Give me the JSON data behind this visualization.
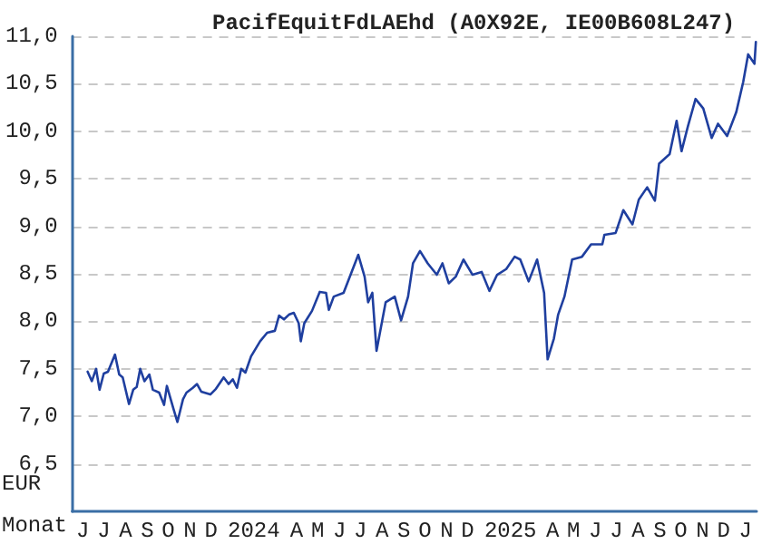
{
  "chart_data": {
    "type": "line",
    "title": "PacifEquitFdLAEhd (A0X92E, IE00B608L247)",
    "xlabel": "Monat",
    "ylabel": "EUR",
    "x": [
      "2023-06-23",
      "2023-06-29",
      "2023-07-05",
      "2023-07-10",
      "2023-07-16",
      "2023-07-22",
      "2023-08-01",
      "2023-08-07",
      "2023-08-12",
      "2023-08-21",
      "2023-08-27",
      "2023-09-01",
      "2023-09-06",
      "2023-09-12",
      "2023-09-19",
      "2023-09-24",
      "2023-10-03",
      "2023-10-10",
      "2023-10-14",
      "2023-10-23",
      "2023-10-29",
      "2023-11-06",
      "2023-11-11",
      "2023-11-20",
      "2023-11-26",
      "2023-12-02",
      "2023-12-15",
      "2023-12-23",
      "2024-01-03",
      "2024-01-10",
      "2024-01-16",
      "2024-01-22",
      "2024-01-28",
      "2024-02-03",
      "2024-02-11",
      "2024-02-24",
      "2024-03-05",
      "2024-03-16",
      "2024-03-22",
      "2024-03-29",
      "2024-04-05",
      "2024-04-12",
      "2024-04-19",
      "2024-04-22",
      "2024-04-27",
      "2024-05-08",
      "2024-05-19",
      "2024-05-28",
      "2024-06-01",
      "2024-06-08",
      "2024-06-22",
      "2024-07-03",
      "2024-07-13",
      "2024-07-22",
      "2024-07-27",
      "2024-08-02",
      "2024-08-08",
      "2024-08-21",
      "2024-09-03",
      "2024-09-12",
      "2024-09-22",
      "2024-09-29",
      "2024-10-09",
      "2024-10-20",
      "2024-11-02",
      "2024-11-10",
      "2024-11-19",
      "2024-11-29",
      "2024-12-10",
      "2024-12-23",
      "2025-01-05",
      "2025-01-16",
      "2025-01-27",
      "2025-02-09",
      "2025-02-21",
      "2025-03-01",
      "2025-03-13",
      "2025-03-25",
      "2025-04-04",
      "2025-04-09",
      "2025-04-18",
      "2025-04-24",
      "2025-05-03",
      "2025-05-14",
      "2025-05-28",
      "2025-06-10",
      "2025-06-26",
      "2025-06-29",
      "2025-07-15",
      "2025-07-26",
      "2025-08-08",
      "2025-08-17",
      "2025-08-29",
      "2025-09-09",
      "2025-09-15",
      "2025-09-30",
      "2025-10-10",
      "2025-10-17",
      "2025-10-26",
      "2025-11-06",
      "2025-11-17",
      "2025-11-29",
      "2025-12-08",
      "2025-12-21",
      "2026-01-03",
      "2026-01-13",
      "2026-01-20",
      "2026-01-29",
      "2026-01-31"
    ],
    "series": [
      {
        "color": "#1f3f9f",
        "values": [
          7.47,
          7.37,
          7.5,
          7.28,
          7.45,
          7.47,
          7.65,
          7.44,
          7.41,
          7.13,
          7.28,
          7.31,
          7.5,
          7.37,
          7.44,
          7.28,
          7.25,
          7.12,
          7.32,
          7.09,
          6.94,
          7.18,
          7.25,
          7.3,
          7.34,
          7.26,
          7.23,
          7.29,
          7.41,
          7.34,
          7.39,
          7.3,
          7.5,
          7.46,
          7.63,
          7.79,
          7.88,
          7.9,
          8.06,
          8.02,
          8.07,
          8.09,
          7.98,
          7.79,
          7.98,
          8.11,
          8.31,
          8.3,
          8.12,
          8.26,
          8.3,
          8.51,
          8.7,
          8.47,
          8.2,
          8.3,
          7.69,
          8.2,
          8.26,
          8.01,
          8.26,
          8.61,
          8.74,
          8.61,
          8.49,
          8.61,
          8.4,
          8.47,
          8.65,
          8.49,
          8.52,
          8.32,
          8.49,
          8.55,
          8.68,
          8.65,
          8.42,
          8.65,
          8.3,
          7.6,
          7.82,
          8.07,
          8.26,
          8.65,
          8.68,
          8.81,
          8.81,
          8.91,
          8.93,
          9.17,
          9.02,
          9.28,
          9.41,
          9.27,
          9.66,
          9.76,
          10.11,
          9.79,
          10.05,
          10.34,
          10.24,
          9.93,
          10.08,
          9.95,
          10.2,
          10.52,
          10.81,
          10.71,
          10.94
        ]
      }
    ],
    "xlim": [
      "2023-06-01",
      "2026-02-01"
    ],
    "xticks": [
      {
        "value": "2023-06-16",
        "label": "J"
      },
      {
        "value": "2023-07-16",
        "label": "J"
      },
      {
        "value": "2023-08-16",
        "label": "A"
      },
      {
        "value": "2023-09-16",
        "label": "S"
      },
      {
        "value": "2023-10-16",
        "label": "O"
      },
      {
        "value": "2023-11-16",
        "label": "N"
      },
      {
        "value": "2023-12-16",
        "label": "D"
      },
      {
        "value": "2024-02-15",
        "label": "2024"
      },
      {
        "value": "2024-04-16",
        "label": "A"
      },
      {
        "value": "2024-05-16",
        "label": "M"
      },
      {
        "value": "2024-06-16",
        "label": "J"
      },
      {
        "value": "2024-07-16",
        "label": "J"
      },
      {
        "value": "2024-08-16",
        "label": "A"
      },
      {
        "value": "2024-09-16",
        "label": "S"
      },
      {
        "value": "2024-10-16",
        "label": "O"
      },
      {
        "value": "2024-11-16",
        "label": "N"
      },
      {
        "value": "2024-12-16",
        "label": "D"
      },
      {
        "value": "2025-02-15",
        "label": "2025"
      },
      {
        "value": "2025-04-16",
        "label": "A"
      },
      {
        "value": "2025-05-16",
        "label": "M"
      },
      {
        "value": "2025-06-16",
        "label": "J"
      },
      {
        "value": "2025-07-16",
        "label": "J"
      },
      {
        "value": "2025-08-16",
        "label": "A"
      },
      {
        "value": "2025-09-16",
        "label": "S"
      },
      {
        "value": "2025-10-16",
        "label": "O"
      },
      {
        "value": "2025-11-16",
        "label": "N"
      },
      {
        "value": "2025-12-16",
        "label": "D"
      },
      {
        "value": "2026-01-16",
        "label": "J"
      }
    ],
    "ylim": [
      6.0,
      11.0
    ],
    "yticks": [
      {
        "value": 6.5,
        "label": "6,5"
      },
      {
        "value": 7.0,
        "label": "7,0"
      },
      {
        "value": 7.5,
        "label": "7,5"
      },
      {
        "value": 8.0,
        "label": "8,0"
      },
      {
        "value": 8.5,
        "label": "8,5"
      },
      {
        "value": 9.0,
        "label": "9,0"
      },
      {
        "value": 9.5,
        "label": "9,5"
      },
      {
        "value": 10.0,
        "label": "10,0"
      },
      {
        "value": 10.5,
        "label": "10,5"
      },
      {
        "value": 11.0,
        "label": "11,0"
      }
    ],
    "grid": "y",
    "marker": "none",
    "line_style": "solid"
  }
}
